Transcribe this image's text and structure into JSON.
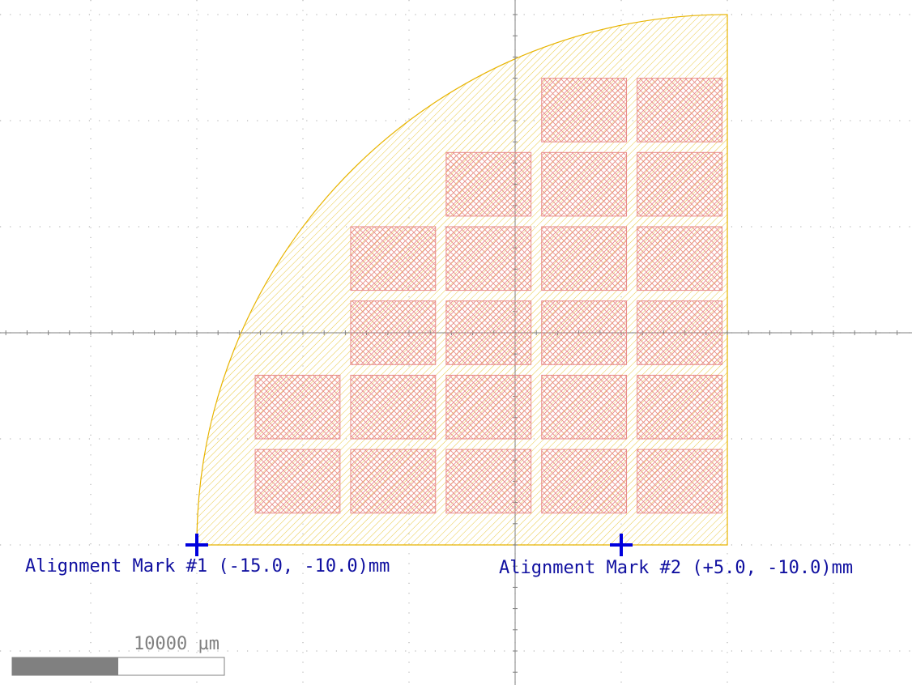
{
  "colors": {
    "background": "#ffffff",
    "grid_dot": "#b8b8b8",
    "axis": "#808080",
    "wafer_outline": "#e8b400",
    "wafer_hatch": "#e8c840",
    "die_outline": "#e88a8a",
    "die_hatch": "#e88a8a",
    "mark": "#0000dd",
    "mark_label": "#1010a0",
    "scale_fill": "#808080",
    "scale_text": "#808080"
  },
  "layout_units": "mm",
  "wafer": {
    "shape": "quarter-circle",
    "center_mm": [
      10.0,
      -10.0
    ],
    "radius_mm": 25.0
  },
  "die_grid": {
    "pitch_mm": [
      4.5,
      3.5
    ],
    "die_size_mm": [
      4.0,
      3.0
    ],
    "rows": [
      {
        "y_center_mm": 10.5,
        "x_centers_mm": [
          3.25,
          7.75
        ]
      },
      {
        "y_center_mm": 7.0,
        "x_centers_mm": [
          -1.25,
          3.25,
          7.75
        ]
      },
      {
        "y_center_mm": 3.5,
        "x_centers_mm": [
          -5.75,
          -1.25,
          3.25,
          7.75
        ]
      },
      {
        "y_center_mm": 0.0,
        "x_centers_mm": [
          -5.75,
          -1.25,
          3.25,
          7.75
        ]
      },
      {
        "y_center_mm": -3.5,
        "x_centers_mm": [
          -10.25,
          -5.75,
          -1.25,
          3.25,
          7.75
        ]
      },
      {
        "y_center_mm": -7.0,
        "x_centers_mm": [
          -10.25,
          -5.75,
          -1.25,
          3.25,
          7.75
        ]
      }
    ]
  },
  "alignment_marks": [
    {
      "id": "mark-1",
      "position_mm": [
        -15.0,
        -10.0
      ],
      "label": "Alignment Mark #1 (-15.0, -10.0)mm"
    },
    {
      "id": "mark-2",
      "position_mm": [
        5.0,
        -10.0
      ],
      "label": "Alignment Mark #2 (+5.0, -10.0)mm"
    }
  ],
  "grid": {
    "spacing_mm": 5.0
  },
  "scale_bar": {
    "label": "10000 µm",
    "length_um": 10000,
    "filled_fraction": 0.5
  }
}
